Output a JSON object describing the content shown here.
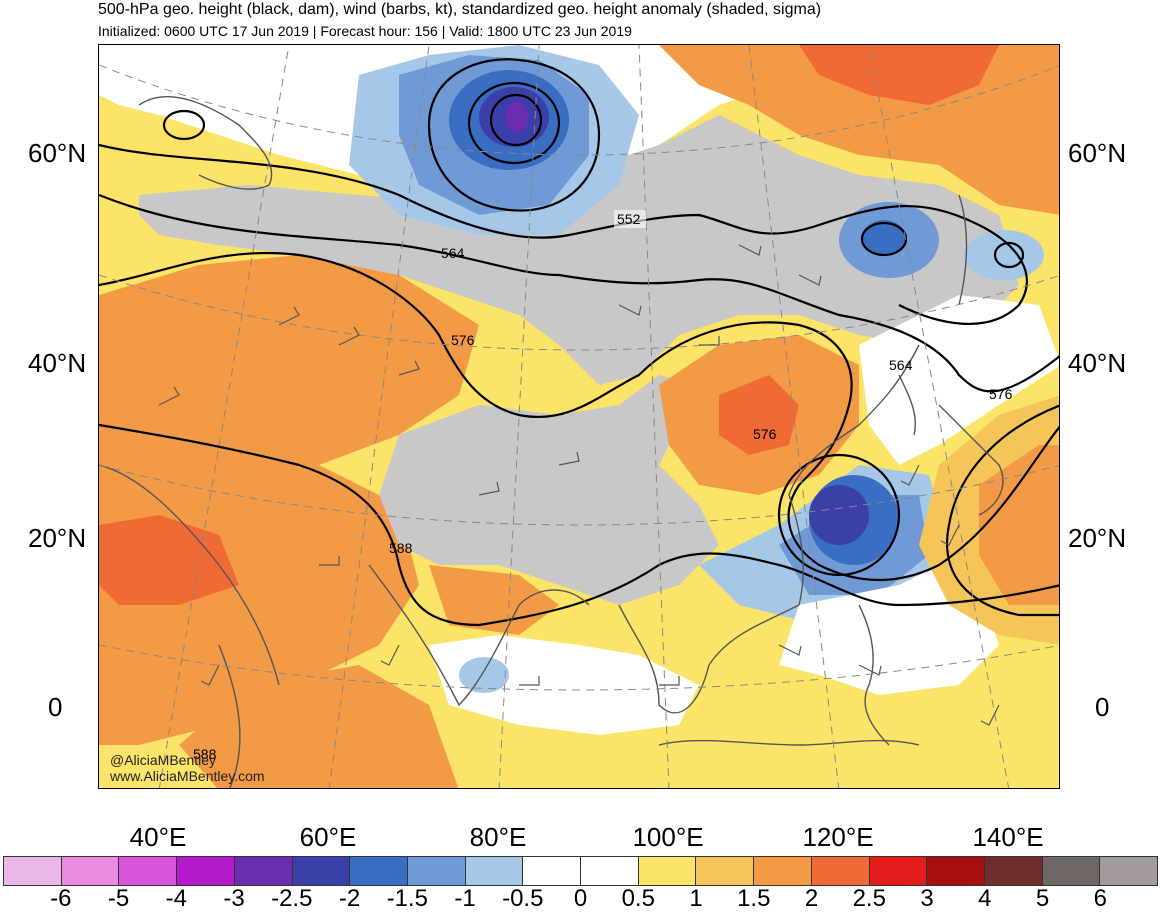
{
  "title": "500-hPa geo. height (black, dam), wind (barbs, kt), standardized geo. height anomaly (shaded, sigma)",
  "subtitle": "Initialized: 0600 UTC 17 Jun 2019 | Forecast hour: 156 | Valid: 1800 UTC 23 Jun 2019",
  "credit": {
    "handle": "@AliciaMBentley",
    "website": "www.AliciaMBentley.com"
  },
  "lat_labels": [
    "60°N",
    "40°N",
    "20°N",
    "0"
  ],
  "lon_labels": [
    "40°E",
    "60°E",
    "80°E",
    "100°E",
    "120°E",
    "140°E"
  ],
  "contour_labels": [
    "552",
    "564",
    "576",
    "564",
    "576",
    "576",
    "588",
    "588"
  ],
  "colorbar": {
    "colors": [
      "#ebb7e6",
      "#e98be1",
      "#d856d9",
      "#b31ac9",
      "#6a2db0",
      "#3b3fa8",
      "#3a6ec2",
      "#6f9ad6",
      "#a6c8e8",
      "#ffffff",
      "#ffffff",
      "#fbe467",
      "#f6c55a",
      "#f29a45",
      "#ef6a35",
      "#e41c1c",
      "#a60f0f",
      "#6e2e2e",
      "#6f6666",
      "#a39b9b"
    ],
    "labels": [
      "-6",
      "-5",
      "-4",
      "-3",
      "-2.5",
      "-2",
      "-1.5",
      "-1",
      "-0.5",
      "0",
      "0.5",
      "1",
      "1.5",
      "2",
      "2.5",
      "3",
      "4",
      "5",
      "6"
    ]
  },
  "palette": {
    "anomaly_neg_strong": "#3b3fa8",
    "anomaly_neg": "#6f9ad6",
    "anomaly_neg_weak": "#a6c8e8",
    "anomaly_pos_weak": "#fbe467",
    "anomaly_pos": "#f6c55a",
    "anomaly_pos_mid": "#f29a45",
    "anomaly_pos_strong": "#ef6a35",
    "land_mask": "#c8c8c8",
    "coastline": "#555555",
    "contour": "#000000"
  }
}
